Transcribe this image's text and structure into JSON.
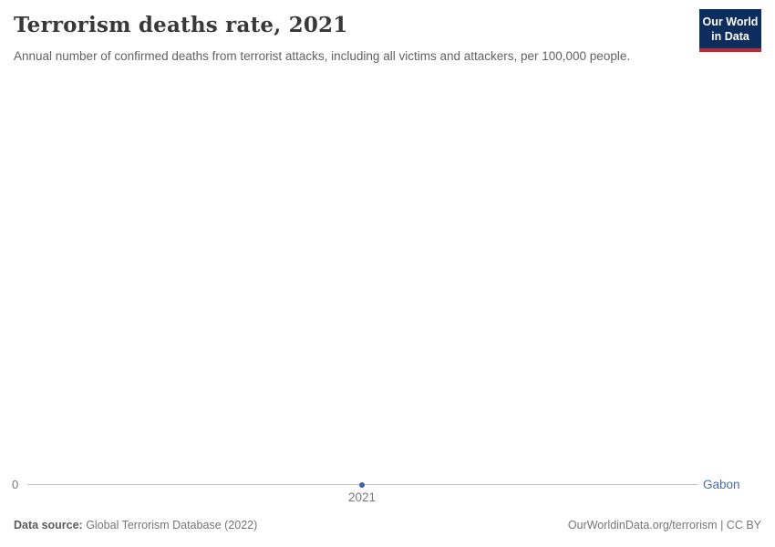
{
  "header": {
    "title": "Terrorism deaths rate, 2021",
    "subtitle": "Annual number of confirmed deaths from terrorist attacks, including all victims and attackers, per 100,000 people."
  },
  "logo": {
    "line1": "Our World",
    "line2": "in Data",
    "bg_color": "#0d2e5c",
    "accent_color": "#c5292f"
  },
  "chart": {
    "y_zero_label": "0",
    "x_tick_label": "2021",
    "entity_label": "Gabon",
    "dot_color": "#3a63a8",
    "entity_color": "#4c6bac",
    "axis_line_color": "#c0c0c0"
  },
  "footer": {
    "source_label": "Data source:",
    "source_value": " Global Terrorism Database (2022)",
    "attribution": "OurWorldinData.org/terrorism | CC BY"
  },
  "chart_data": {
    "type": "line",
    "title": "Terrorism deaths rate, 2021",
    "subtitle": "Annual number of confirmed deaths from terrorist attacks, including all victims and attackers, per 100,000 people.",
    "series": [
      {
        "name": "Gabon",
        "x": [
          2021
        ],
        "values": [
          0
        ]
      }
    ],
    "xlabel": "",
    "ylabel": "",
    "x_ticks": [
      "2021"
    ],
    "y_ticks": [
      "0"
    ],
    "ylim": [
      0,
      0
    ],
    "grid": false,
    "legend_position": "right-end-label",
    "source": "Global Terrorism Database (2022)"
  }
}
